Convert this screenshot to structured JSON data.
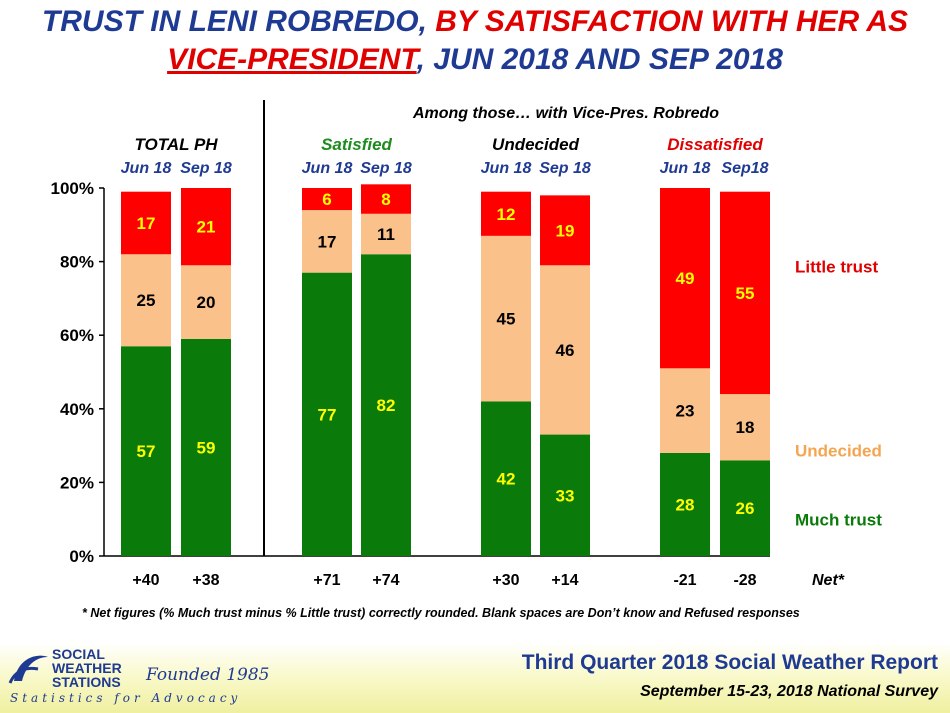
{
  "title": {
    "line1_a": "TRUST IN LENI ROBREDO, ",
    "line1_b": "BY SATISFACTION WITH HER AS",
    "line2_a": "VICE-PRESIDENT",
    "line2_b": ", JUN 2018 AND SEP 2018"
  },
  "chart_data": {
    "type": "bar",
    "stacked": true,
    "supertitle": "Among those… with Vice-Pres. Robredo",
    "y_ticks": [
      "0%",
      "20%",
      "40%",
      "60%",
      "80%",
      "100%"
    ],
    "ylim": [
      0,
      100
    ],
    "groups": [
      {
        "name": "TOTAL PH",
        "color": "#000000",
        "bars": [
          {
            "period": "Jun 18",
            "much": 57,
            "undecided": 25,
            "little": 17,
            "net": "+40"
          },
          {
            "period": "Sep 18",
            "much": 59,
            "undecided": 20,
            "little": 21,
            "net": "+38"
          }
        ]
      },
      {
        "name": "Satisfied",
        "color": "#1e8b1e",
        "bars": [
          {
            "period": "Jun 18",
            "much": 77,
            "undecided": 17,
            "little": 6,
            "net": "+71"
          },
          {
            "period": "Sep 18",
            "much": 82,
            "undecided": 11,
            "little": 8,
            "net": "+74"
          }
        ]
      },
      {
        "name": "Undecided",
        "color": "#000000",
        "bars": [
          {
            "period": "Jun 18",
            "much": 42,
            "undecided": 45,
            "little": 12,
            "net": "+30"
          },
          {
            "period": "Sep 18",
            "much": 33,
            "undecided": 46,
            "little": 19,
            "net": "+14"
          }
        ]
      },
      {
        "name": "Dissatisfied",
        "color": "#e00000",
        "bars": [
          {
            "period": "Jun 18",
            "much": 28,
            "undecided": 23,
            "little": 49,
            "net": "-21"
          },
          {
            "period": "Sep18",
            "much": 26,
            "undecided": 18,
            "little": 55,
            "net": "-28"
          }
        ]
      }
    ],
    "series": [
      {
        "name": "Little trust",
        "key": "little",
        "color": "#ff0000",
        "label_color": "#e00000"
      },
      {
        "name": "Undecided",
        "key": "undecided",
        "color": "#fac18a",
        "label_color": "#f5a550"
      },
      {
        "name": "Much trust",
        "key": "much",
        "color": "#0a7a0a",
        "label_color": "#0a7a0a"
      }
    ],
    "net_label": "Net*"
  },
  "footnote": "* Net figures (% Much trust minus % Little trust) correctly rounded. Blank spaces are Don’t know and Refused responses",
  "footer": {
    "logo_line1": "SOCIAL",
    "logo_line2": "WEATHER",
    "logo_line3": "STATIONS",
    "founded": "Founded 1985",
    "tagline": "Statistics for Advocacy",
    "report": "Third Quarter 2018 Social Weather Report",
    "survey": "September 15-23, 2018 National Survey"
  }
}
